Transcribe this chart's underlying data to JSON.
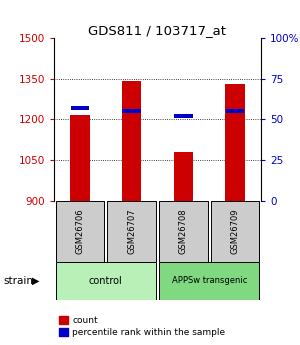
{
  "title": "GDS811 / 103717_at",
  "samples": [
    "GSM26706",
    "GSM26707",
    "GSM26708",
    "GSM26709"
  ],
  "count_values": [
    1215,
    1340,
    1080,
    1330
  ],
  "percentile_values": [
    57,
    55,
    52,
    55
  ],
  "ylim_left": [
    900,
    1500
  ],
  "ylim_right": [
    0,
    100
  ],
  "yticks_left": [
    900,
    1050,
    1200,
    1350,
    1500
  ],
  "yticks_right": [
    0,
    25,
    50,
    75,
    100
  ],
  "ytick_labels_right": [
    "0",
    "25",
    "50",
    "75",
    "100%"
  ],
  "groups": [
    {
      "label": "control",
      "samples": [
        0,
        1
      ],
      "color": "#b8f0b8"
    },
    {
      "label": "APPSw transgenic",
      "samples": [
        2,
        3
      ],
      "color": "#80d880"
    }
  ],
  "bar_color_red": "#cc0000",
  "bar_color_blue": "#0000cc",
  "bar_width": 0.38,
  "axis_left_color": "#cc0000",
  "axis_right_color": "#0000cc",
  "sample_box_color": "#cccccc",
  "strain_label": "strain",
  "legend_count_label": "count",
  "legend_percentile_label": "percentile rank within the sample",
  "gridline_levels": [
    1050,
    1200,
    1350
  ],
  "fig_width": 3.0,
  "fig_height": 3.45,
  "dpi": 100
}
